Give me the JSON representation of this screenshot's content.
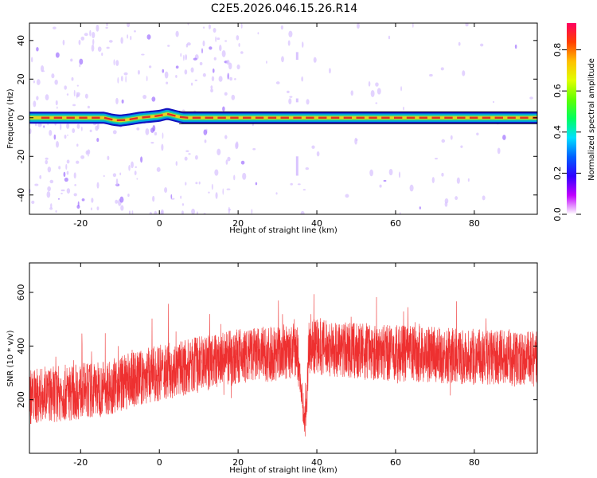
{
  "page_title": "C2E5.2026.046.15.26.R14",
  "chart_data": [
    {
      "type": "heatmap",
      "title": "C2E5.2026.046.15.26.R14",
      "xlabel": "Height of straight line (km)",
      "ylabel": "Frequency (Hz)",
      "xlim": [
        -33,
        96
      ],
      "ylim": [
        -50,
        49
      ],
      "xticks": [
        "-20",
        "0",
        "20",
        "40",
        "60",
        "80"
      ],
      "yticks": [
        "-40",
        "-20",
        "0",
        "20",
        "40"
      ],
      "colorbar": {
        "label": "Normalized spectral amplitude",
        "range": [
          0,
          0.93
        ],
        "ticks": [
          "0.0",
          "0.2",
          "0.4",
          "0.6",
          "0.8"
        ],
        "colors": [
          "#ffffff",
          "#c000ff",
          "#3000ff",
          "#0060ff",
          "#00e0ff",
          "#00ff60",
          "#60ff00",
          "#e0ff00",
          "#ffc000",
          "#ff4000",
          "#ff0060"
        ]
      },
      "band": {
        "center_hz": 0,
        "halfwidth_hz": 2,
        "peak_amplitude": 0.85,
        "centerline": [
          [
            -33,
            0
          ],
          [
            -14,
            0
          ],
          [
            -12,
            -1
          ],
          [
            -10,
            -1.5
          ],
          [
            -8,
            -1
          ],
          [
            -5,
            0
          ],
          [
            0,
            1
          ],
          [
            2,
            2
          ],
          [
            4,
            1
          ],
          [
            6,
            0
          ],
          [
            96,
            0
          ]
        ]
      },
      "grid": false
    },
    {
      "type": "line",
      "xlabel": "Height of straight line (km)",
      "ylabel": "SNR (10 * v/v)",
      "xlim": [
        -33,
        96
      ],
      "ylim": [
        0,
        710
      ],
      "xticks": [
        "-20",
        "0",
        "20",
        "40",
        "60",
        "80"
      ],
      "yticks": [
        "200",
        "400",
        "600"
      ],
      "series_color": "#ee3030",
      "trend": [
        [
          -33,
          210
        ],
        [
          -15,
          240
        ],
        [
          0,
          300
        ],
        [
          20,
          360
        ],
        [
          35,
          380
        ],
        [
          36,
          250
        ],
        [
          37,
          100
        ],
        [
          38,
          400
        ],
        [
          50,
          380
        ],
        [
          96,
          350
        ]
      ],
      "grid": false
    }
  ]
}
